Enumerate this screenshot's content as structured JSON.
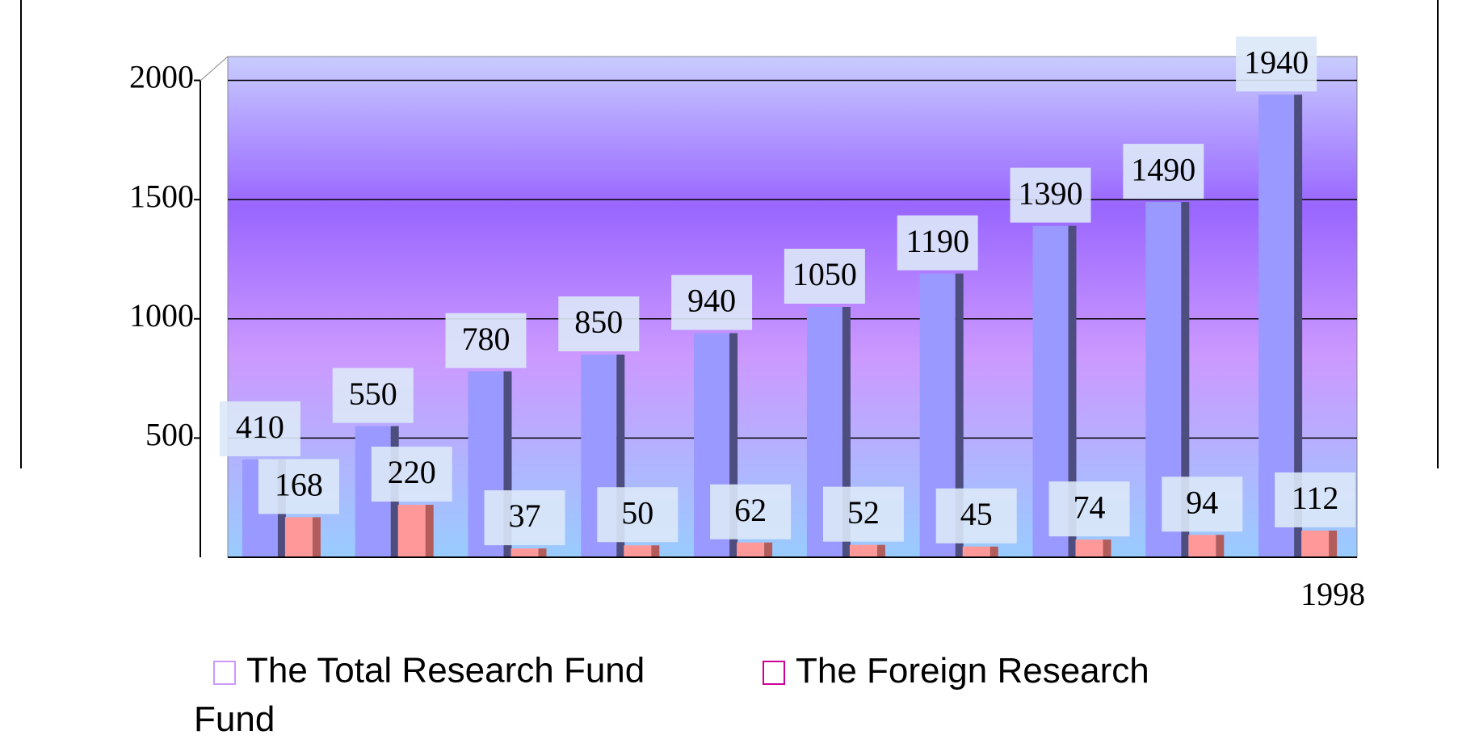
{
  "chart_data": {
    "type": "bar",
    "categories": [
      null,
      null,
      null,
      null,
      null,
      null,
      null,
      null,
      null,
      "1998"
    ],
    "series": [
      {
        "name": "The Total Research Fund",
        "color": "#9999ff",
        "values": [
          410,
          550,
          780,
          850,
          940,
          1050,
          1190,
          1390,
          1490,
          1940
        ]
      },
      {
        "name": "The Foreign Research Fund",
        "color": "#ff9999",
        "values": [
          168,
          220,
          37,
          50,
          62,
          52,
          45,
          74,
          94,
          112
        ]
      }
    ],
    "ylim": [
      0,
      2100
    ],
    "yticks": [
      500,
      1000,
      1500,
      2000
    ],
    "grid": true,
    "legend": "bottom"
  }
}
